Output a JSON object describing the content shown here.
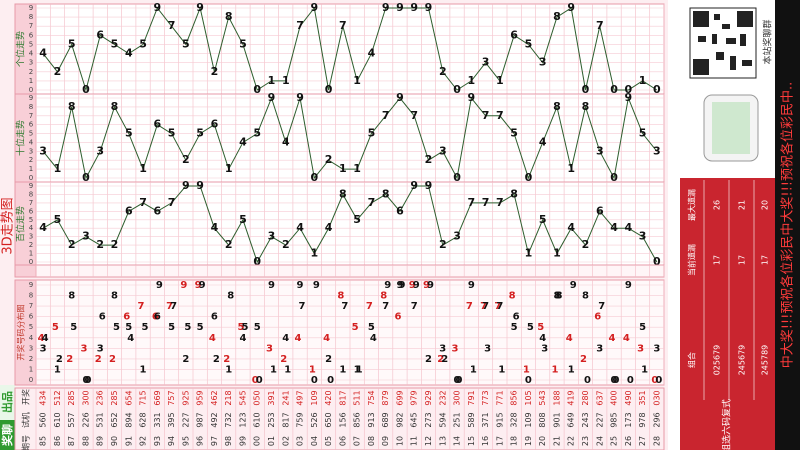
{
  "brand": "奖聊",
  "brand_suffix": "出品",
  "page_title": "3D走势图",
  "column_headers": [
    "期号",
    "试机",
    "开奖"
  ],
  "distribution_label": "开奖号码分布图",
  "chart_data": {
    "type": "line",
    "categories": [
      "85",
      "86",
      "87",
      "88",
      "89",
      "90",
      "91",
      "92",
      "93",
      "94",
      "95",
      "96",
      "97",
      "98",
      "99",
      "00",
      "01",
      "02",
      "03",
      "04",
      "05",
      "06",
      "07",
      "08",
      "09",
      "10",
      "11",
      "12",
      "13",
      "14",
      "15",
      "16",
      "17",
      "18",
      "19",
      "20",
      "21",
      "22",
      "23",
      "24",
      "25",
      "26",
      "27",
      "28"
    ],
    "series": [
      {
        "name": "个位走势",
        "color": "#2e5e2e",
        "values": [
          4,
          2,
          5,
          0,
          6,
          5,
          4,
          5,
          9,
          7,
          5,
          9,
          2,
          8,
          5,
          0,
          1,
          1,
          7,
          9,
          0,
          7,
          1,
          4,
          9,
          9,
          9,
          9,
          2,
          0,
          1,
          3,
          1,
          6,
          5,
          3,
          8,
          9,
          0,
          7,
          0,
          0,
          1,
          0
        ]
      },
      {
        "name": "十位走势",
        "color": "#2e5e2e",
        "values": [
          3,
          1,
          8,
          0,
          3,
          8,
          5,
          1,
          6,
          5,
          2,
          5,
          6,
          1,
          4,
          5,
          9,
          4,
          9,
          0,
          2,
          1,
          1,
          5,
          7,
          9,
          7,
          2,
          3,
          0,
          9,
          7,
          7,
          5,
          0,
          4,
          8,
          1,
          8,
          3,
          0,
          9,
          5,
          3
        ]
      },
      {
        "name": "百位走势",
        "color": "#2e5e2e",
        "values": [
          4,
          5,
          2,
          3,
          2,
          2,
          6,
          7,
          6,
          7,
          9,
          9,
          4,
          2,
          5,
          0,
          3,
          2,
          4,
          1,
          4,
          8,
          5,
          7,
          8,
          6,
          9,
          9,
          2,
          3,
          7,
          7,
          7,
          8,
          1,
          5,
          1,
          4,
          2,
          6,
          4,
          4,
          3,
          0
        ]
      }
    ],
    "ylim": [
      0,
      9
    ],
    "yticks": [
      0,
      1,
      2,
      3,
      4,
      5,
      6,
      7,
      8,
      9
    ],
    "grid": true
  },
  "draws": {
    "test": [
      "560",
      "610",
      "557",
      "226",
      "531",
      "652",
      "894",
      "628",
      "331",
      "395",
      "227",
      "987",
      "492",
      "732",
      "123",
      "610",
      "253",
      "817",
      "759",
      "526",
      "650",
      "156",
      "856",
      "913",
      "689",
      "982",
      "645",
      "273",
      "594",
      "251",
      "589",
      "371",
      "915",
      "328",
      "109",
      "808",
      "901",
      "649",
      "243",
      "227",
      "985",
      "173",
      "978",
      "296"
    ],
    "open": [
      "434",
      "512",
      "285",
      "300",
      "236",
      "285",
      "654",
      "715",
      "669",
      "757",
      "925",
      "959",
      "462",
      "218",
      "545",
      "050",
      "391",
      "241",
      "497",
      "109",
      "420",
      "817",
      "511",
      "754",
      "879",
      "699",
      "979",
      "929",
      "232",
      "300",
      "791",
      "773",
      "771",
      "856",
      "105",
      "543",
      "188",
      "419",
      "280",
      "637",
      "400",
      "490",
      "351",
      "030"
    ]
  },
  "qr_caption": "本站奖聊群",
  "stats": {
    "title": "组选六码复式",
    "headers": [
      "组合",
      "当前遗漏",
      "最大遗漏"
    ],
    "rows": [
      [
        "025679",
        17,
        26
      ],
      [
        "245679",
        17,
        21
      ],
      [
        "245789",
        17,
        20
      ]
    ]
  },
  "ticker": "中大奖!!!预祝各位彩民中大奖!!!预祝各位彩民中.."
}
